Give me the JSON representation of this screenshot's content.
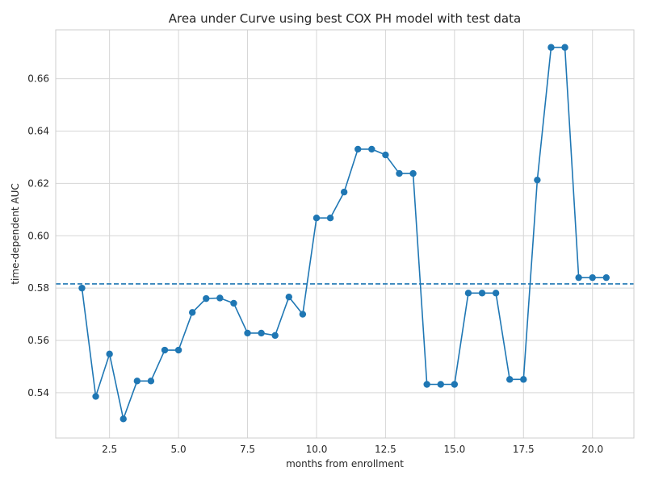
{
  "chart_data": {
    "type": "line",
    "title": "Area under Curve using best COX PH model with test data",
    "xlabel": "months from enrollment",
    "ylabel": "time-dependent AUC",
    "xlim": [
      0.55,
      21.5
    ],
    "ylim": [
      0.5227,
      0.6787
    ],
    "xticks": [
      2.5,
      5.0,
      7.5,
      10.0,
      12.5,
      15.0,
      17.5,
      20.0
    ],
    "xtick_labels": [
      "2.5",
      "5.0",
      "7.5",
      "10.0",
      "12.5",
      "15.0",
      "17.5",
      "20.0"
    ],
    "yticks": [
      0.54,
      0.56,
      0.58,
      0.6,
      0.62,
      0.64,
      0.66
    ],
    "ytick_labels": [
      "0.54",
      "0.56",
      "0.58",
      "0.60",
      "0.62",
      "0.64",
      "0.66"
    ],
    "grid": true,
    "series": [
      {
        "color": "#1f77b4",
        "marker": "circle",
        "x": [
          1.5,
          2.0,
          2.5,
          3.0,
          3.5,
          4.0,
          4.5,
          5.0,
          5.5,
          6.0,
          6.5,
          7.0,
          7.5,
          8.0,
          8.5,
          9.0,
          9.5,
          10.0,
          10.5,
          11.0,
          11.5,
          12.0,
          12.5,
          13.0,
          13.5,
          14.0,
          14.5,
          15.0,
          15.5,
          16.0,
          16.5,
          17.0,
          17.5,
          18.0,
          18.5,
          19.0,
          19.5,
          20.0,
          20.5
        ],
        "y": [
          0.58,
          0.5386,
          0.5548,
          0.53,
          0.5445,
          0.5445,
          0.5563,
          0.5563,
          0.5707,
          0.576,
          0.5762,
          0.5742,
          0.5628,
          0.5628,
          0.5619,
          0.5766,
          0.57,
          0.6068,
          0.6068,
          0.6167,
          0.6331,
          0.6331,
          0.6309,
          0.6238,
          0.6238,
          0.5432,
          0.5432,
          0.5432,
          0.5781,
          0.5781,
          0.5781,
          0.5451,
          0.5451,
          0.6213,
          0.672,
          0.672,
          0.584,
          0.584,
          0.584
        ]
      }
    ],
    "reference_line": {
      "type": "horizontal",
      "y": 0.5816,
      "style": "dashed",
      "color": "#1f77b4"
    }
  }
}
